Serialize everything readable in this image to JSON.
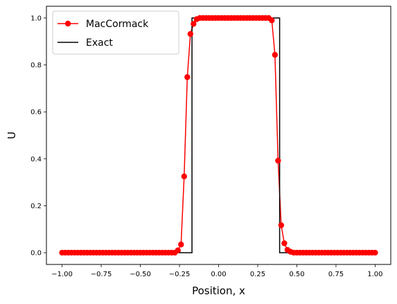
{
  "chart_data": {
    "type": "line",
    "xlabel": "Position, x",
    "ylabel": "U",
    "xlim": [
      -1.1,
      1.1
    ],
    "ylim": [
      -0.05,
      1.05
    ],
    "xticks": [
      -1.0,
      -0.75,
      -0.5,
      -0.25,
      0.0,
      0.25,
      0.5,
      0.75,
      1.0
    ],
    "xtick_labels": [
      "−1.00",
      "−0.75",
      "−0.50",
      "−0.25",
      "0.00",
      "0.25",
      "0.50",
      "0.75",
      "1.00"
    ],
    "yticks": [
      0.0,
      0.2,
      0.4,
      0.6,
      0.8,
      1.0
    ],
    "ytick_labels": [
      "0.0",
      "0.2",
      "0.4",
      "0.6",
      "0.8",
      "1.0"
    ],
    "grid": false,
    "legend_position": "top-left",
    "series": [
      {
        "name": "MacCormack",
        "color": "#ff0000",
        "marker": "circle",
        "x": [
          -1.0,
          -0.98,
          -0.96,
          -0.94,
          -0.92,
          -0.9,
          -0.88,
          -0.86,
          -0.84,
          -0.82,
          -0.8,
          -0.78,
          -0.76,
          -0.74,
          -0.72,
          -0.7,
          -0.68,
          -0.66,
          -0.64,
          -0.62,
          -0.6,
          -0.58,
          -0.56,
          -0.54,
          -0.52,
          -0.5,
          -0.48,
          -0.46,
          -0.44,
          -0.42,
          -0.4,
          -0.38,
          -0.36,
          -0.34,
          -0.32,
          -0.3,
          -0.28,
          -0.26,
          -0.24,
          -0.22,
          -0.2,
          -0.18,
          -0.16,
          -0.14,
          -0.12,
          -0.1,
          -0.08,
          -0.06,
          -0.04,
          -0.02,
          0.0,
          0.02,
          0.04,
          0.06,
          0.08,
          0.1,
          0.12,
          0.14,
          0.16,
          0.18,
          0.2,
          0.22,
          0.24,
          0.26,
          0.28,
          0.3,
          0.32,
          0.34,
          0.36,
          0.38,
          0.4,
          0.42,
          0.44,
          0.46,
          0.48,
          0.5,
          0.52,
          0.54,
          0.56,
          0.58,
          0.6,
          0.62,
          0.64,
          0.66,
          0.68,
          0.7,
          0.72,
          0.74,
          0.76,
          0.78,
          0.8,
          0.82,
          0.84,
          0.86,
          0.88,
          0.9,
          0.92,
          0.94,
          0.96,
          0.98,
          1.0
        ],
        "y": [
          0.0,
          0.0,
          0.0,
          0.0,
          0.0,
          0.0,
          0.0,
          0.0,
          0.0,
          0.0,
          0.0,
          0.0,
          0.0,
          0.0,
          0.0,
          0.0,
          0.0,
          0.0,
          0.0,
          0.0,
          0.0,
          0.0,
          0.0,
          0.0,
          0.0,
          0.0,
          0.0,
          0.0,
          0.0,
          0.0,
          0.0,
          0.0,
          0.0,
          0.0,
          0.0,
          0.0,
          0.0,
          0.01,
          0.035,
          0.325,
          0.748,
          0.932,
          0.975,
          0.995,
          1.0,
          1.0,
          1.0,
          1.0,
          1.0,
          1.0,
          1.0,
          1.0,
          1.0,
          1.0,
          1.0,
          1.0,
          1.0,
          1.0,
          1.0,
          1.0,
          1.0,
          1.0,
          1.0,
          1.0,
          1.0,
          1.0,
          1.0,
          0.99,
          0.843,
          0.392,
          0.117,
          0.04,
          0.012,
          0.004,
          0.0,
          0.0,
          0.0,
          0.0,
          0.0,
          0.0,
          0.0,
          0.0,
          0.0,
          0.0,
          0.0,
          0.0,
          0.0,
          0.0,
          0.0,
          0.0,
          0.0,
          0.0,
          0.0,
          0.0,
          0.0,
          0.0,
          0.0,
          0.0,
          0.0,
          0.0,
          0.0
        ]
      },
      {
        "name": "Exact",
        "color": "#000000",
        "marker": "none",
        "x": [
          -1.0,
          -0.2,
          -0.2,
          -0.17,
          -0.17,
          0.37,
          0.37,
          0.39,
          0.39,
          1.0
        ],
        "y": [
          0.0,
          0.0,
          0.0,
          0.0,
          1.0,
          1.0,
          1.0,
          1.0,
          0.0,
          0.0
        ]
      }
    ]
  }
}
